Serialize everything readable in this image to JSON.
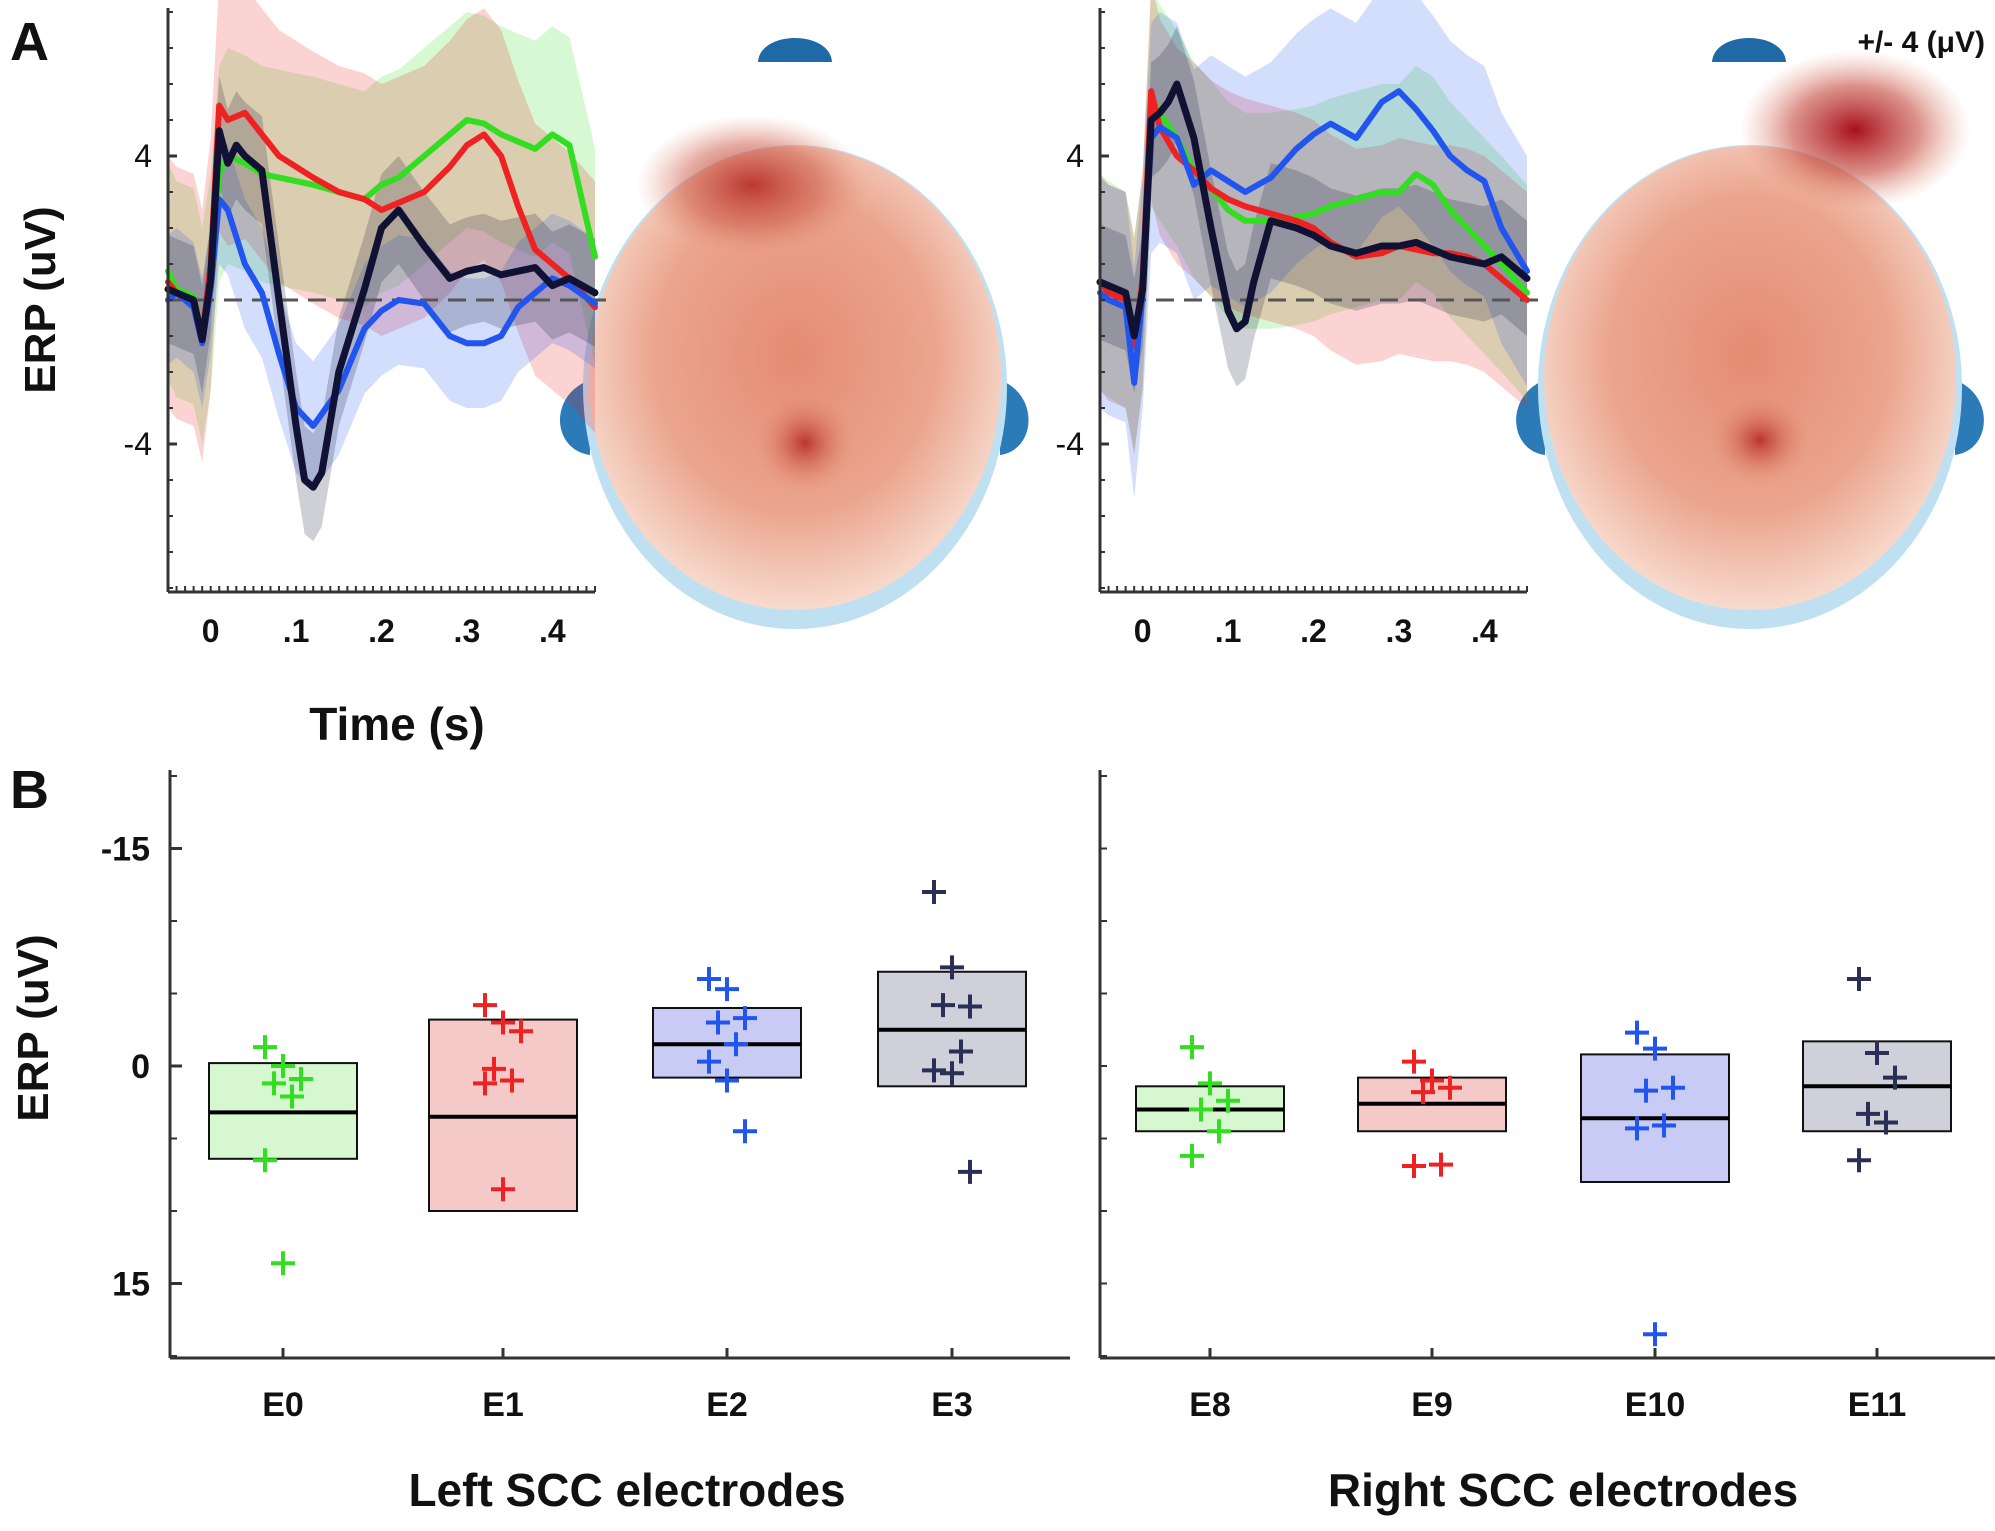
{
  "chart_data": [
    {
      "panel": "A",
      "type": "line",
      "title": "",
      "scale_label": "+/- 4 (μV)",
      "ylabel": "ERP (uV)",
      "xlabel": "Time (s)",
      "xlim": [
        -0.05,
        0.45
      ],
      "ylim": [
        -8,
        8
      ],
      "yticks": [
        4,
        -4
      ],
      "ytick_labels": [
        "4",
        "-4"
      ],
      "xticks": [
        0,
        0.1,
        0.2,
        0.3,
        0.4
      ],
      "xtick_labels": [
        "0",
        ".1",
        ".2",
        ".3",
        ".4"
      ],
      "colors": {
        "green": "#33dd22",
        "red": "#ee2222",
        "blue": "#2255ee",
        "black": "#111133"
      },
      "subplots": [
        {
          "name": "left",
          "series": [
            {
              "name": "green",
              "color": "#33dd22",
              "x": [
                -0.05,
                -0.04,
                -0.02,
                -0.01,
                0.0,
                0.01,
                0.02,
                0.04,
                0.06,
                0.08,
                0.1,
                0.12,
                0.15,
                0.18,
                0.2,
                0.22,
                0.25,
                0.28,
                0.3,
                0.32,
                0.34,
                0.36,
                0.38,
                0.4,
                0.42,
                0.45
              ],
              "y": [
                0.8,
                0.3,
                0.1,
                -1.0,
                0.5,
                3.5,
                4.0,
                3.8,
                3.5,
                3.4,
                3.3,
                3.2,
                3.0,
                2.8,
                3.2,
                3.4,
                4.0,
                4.6,
                5.0,
                4.9,
                4.6,
                4.4,
                4.2,
                4.6,
                4.3,
                1.2
              ],
              "band": 3.0
            },
            {
              "name": "red",
              "color": "#ee2222",
              "x": [
                -0.05,
                -0.04,
                -0.02,
                -0.01,
                0.0,
                0.01,
                0.02,
                0.04,
                0.06,
                0.08,
                0.1,
                0.12,
                0.15,
                0.18,
                0.2,
                0.22,
                0.25,
                0.28,
                0.3,
                0.32,
                0.34,
                0.36,
                0.38,
                0.4,
                0.42,
                0.45
              ],
              "y": [
                0.5,
                0.2,
                0.0,
                -1.0,
                1.0,
                5.4,
                5.0,
                5.2,
                4.6,
                4.0,
                3.7,
                3.4,
                3.0,
                2.8,
                2.5,
                2.7,
                3.0,
                3.7,
                4.3,
                4.6,
                4.0,
                2.6,
                1.4,
                1.0,
                0.6,
                -0.2
              ],
              "band": 3.5
            },
            {
              "name": "blue",
              "color": "#2255ee",
              "x": [
                -0.05,
                -0.04,
                -0.02,
                -0.01,
                0.0,
                0.01,
                0.02,
                0.04,
                0.06,
                0.08,
                0.1,
                0.12,
                0.15,
                0.18,
                0.2,
                0.22,
                0.25,
                0.28,
                0.3,
                0.32,
                0.34,
                0.36,
                0.38,
                0.4,
                0.42,
                0.45
              ],
              "y": [
                0.0,
                0.2,
                -0.2,
                -1.2,
                0.3,
                2.8,
                2.5,
                1.0,
                0.2,
                -1.5,
                -3.0,
                -3.5,
                -2.5,
                -0.8,
                -0.3,
                0.0,
                -0.1,
                -1.0,
                -1.2,
                -1.2,
                -1.0,
                -0.2,
                0.2,
                0.6,
                0.4,
                -0.1
              ],
              "band": 1.8
            },
            {
              "name": "black",
              "color": "#111133",
              "x": [
                -0.05,
                -0.04,
                -0.02,
                -0.01,
                0.0,
                0.01,
                0.02,
                0.03,
                0.04,
                0.06,
                0.08,
                0.1,
                0.11,
                0.12,
                0.13,
                0.15,
                0.18,
                0.2,
                0.22,
                0.25,
                0.28,
                0.3,
                0.32,
                0.34,
                0.36,
                0.38,
                0.4,
                0.42,
                0.45
              ],
              "y": [
                0.3,
                0.2,
                0.0,
                -1.1,
                0.6,
                4.7,
                3.8,
                4.3,
                4.0,
                3.6,
                0.0,
                -3.5,
                -5.0,
                -5.2,
                -4.8,
                -2.0,
                0.3,
                2.0,
                2.5,
                1.5,
                0.6,
                0.8,
                0.9,
                0.7,
                0.8,
                0.9,
                0.4,
                0.6,
                0.2
              ],
              "band": 1.5
            }
          ]
        },
        {
          "name": "right",
          "series": [
            {
              "name": "green",
              "color": "#33dd22",
              "x": [
                -0.05,
                -0.04,
                -0.02,
                -0.01,
                0.0,
                0.01,
                0.02,
                0.04,
                0.06,
                0.08,
                0.1,
                0.12,
                0.15,
                0.18,
                0.2,
                0.22,
                0.25,
                0.28,
                0.3,
                0.32,
                0.34,
                0.36,
                0.38,
                0.4,
                0.42,
                0.45
              ],
              "y": [
                0.5,
                0.3,
                0.0,
                -1.2,
                0.5,
                5.6,
                5.2,
                4.5,
                3.6,
                3.1,
                2.5,
                2.2,
                2.2,
                2.3,
                2.4,
                2.6,
                2.8,
                3.0,
                3.0,
                3.5,
                3.2,
                2.5,
                2.0,
                1.5,
                1.0,
                0.2
              ],
              "band": 3.0
            },
            {
              "name": "red",
              "color": "#ee2222",
              "x": [
                -0.05,
                -0.04,
                -0.02,
                -0.01,
                0.0,
                0.01,
                0.02,
                0.04,
                0.06,
                0.08,
                0.1,
                0.12,
                0.15,
                0.18,
                0.2,
                0.22,
                0.25,
                0.28,
                0.3,
                0.32,
                0.34,
                0.36,
                0.38,
                0.4,
                0.42,
                0.45
              ],
              "y": [
                0.5,
                0.2,
                0.0,
                -1.3,
                0.6,
                5.8,
                4.8,
                4.0,
                3.6,
                3.1,
                2.8,
                2.6,
                2.4,
                2.2,
                2.0,
                1.6,
                1.2,
                1.3,
                1.5,
                1.4,
                1.3,
                1.3,
                1.2,
                1.0,
                0.6,
                0.0
              ],
              "band": 3.0
            },
            {
              "name": "blue",
              "color": "#2255ee",
              "x": [
                -0.05,
                -0.04,
                -0.02,
                -0.01,
                0.0,
                0.01,
                0.02,
                0.04,
                0.06,
                0.08,
                0.1,
                0.12,
                0.15,
                0.18,
                0.2,
                0.22,
                0.25,
                0.28,
                0.3,
                0.32,
                0.34,
                0.36,
                0.38,
                0.4,
                0.42,
                0.45
              ],
              "y": [
                0.2,
                0.0,
                -0.2,
                -2.3,
                0.2,
                4.5,
                4.8,
                4.5,
                3.2,
                3.6,
                3.3,
                3.0,
                3.4,
                4.2,
                4.6,
                4.9,
                4.5,
                5.5,
                5.8,
                5.3,
                4.7,
                4.0,
                3.6,
                3.3,
                2.0,
                0.8
              ],
              "band": 3.2
            },
            {
              "name": "black",
              "color": "#111133",
              "x": [
                -0.05,
                -0.04,
                -0.02,
                -0.01,
                0.0,
                0.01,
                0.02,
                0.03,
                0.04,
                0.06,
                0.08,
                0.1,
                0.11,
                0.12,
                0.13,
                0.15,
                0.18,
                0.2,
                0.22,
                0.25,
                0.28,
                0.3,
                0.32,
                0.34,
                0.36,
                0.38,
                0.4,
                0.42,
                0.45
              ],
              "y": [
                0.5,
                0.4,
                0.2,
                -1.0,
                0.3,
                5.0,
                5.2,
                5.5,
                6.0,
                4.5,
                2.0,
                -0.3,
                -0.8,
                -0.6,
                0.5,
                2.2,
                2.0,
                1.8,
                1.5,
                1.3,
                1.5,
                1.5,
                1.6,
                1.4,
                1.2,
                1.1,
                1.0,
                1.2,
                0.6
              ],
              "band": 1.6
            }
          ]
        }
      ],
      "topomaps": [
        {
          "name": "left-topomap",
          "hotspots": [
            "frontal",
            "parietal"
          ]
        },
        {
          "name": "right-topomap",
          "hotspots": [
            "right-frontal",
            "parietal"
          ]
        }
      ]
    },
    {
      "panel": "B",
      "type": "box",
      "ylabel": "ERP (uV)",
      "ylim": [
        -20,
        20
      ],
      "y_inverted": true,
      "yticks": [
        -15,
        0,
        15
      ],
      "ytick_labels": [
        "-15",
        "0",
        "15"
      ],
      "groups": [
        {
          "name": "left",
          "xlabel": "Left SCC electrodes",
          "boxes": [
            {
              "category": "E0",
              "color": "#33dd22",
              "fill": "#d6f7cf",
              "q1": -0.2,
              "median": 3.2,
              "q3": 6.4,
              "points": [
                -1.3,
                0.0,
                0.9,
                1.2,
                2.1,
                6.5,
                13.6
              ]
            },
            {
              "category": "E1",
              "color": "#ee2222",
              "fill": "#f6c9c9",
              "q1": -3.2,
              "median": 3.5,
              "q3": 10.0,
              "points": [
                -4.2,
                -3.0,
                -2.4,
                0.2,
                1.0,
                1.2,
                8.5
              ]
            },
            {
              "category": "E2",
              "color": "#2255ee",
              "fill": "#c8ccf4",
              "q1": -4.0,
              "median": -1.5,
              "q3": 0.8,
              "points": [
                -6.0,
                -5.3,
                -3.3,
                -3.0,
                -1.5,
                -0.3,
                1.0,
                4.5
              ]
            },
            {
              "category": "E3",
              "color": "#2a2f55",
              "fill": "#cfd0da",
              "q1": -6.5,
              "median": -2.5,
              "q3": 1.4,
              "points": [
                -12.0,
                -6.8,
                -4.1,
                -4.2,
                -1.0,
                0.3,
                0.5,
                7.3
              ]
            }
          ]
        },
        {
          "name": "right",
          "xlabel": "Right SCC electrodes",
          "boxes": [
            {
              "category": "E8",
              "color": "#33dd22",
              "fill": "#d6f7cf",
              "q1": 1.4,
              "median": 3.0,
              "q3": 4.5,
              "points": [
                -1.3,
                1.2,
                2.4,
                3.0,
                4.5,
                6.2
              ]
            },
            {
              "category": "E9",
              "color": "#ee2222",
              "fill": "#f6c9c9",
              "q1": 0.8,
              "median": 2.6,
              "q3": 4.5,
              "points": [
                -0.3,
                1.0,
                1.5,
                1.8,
                6.8,
                6.9
              ]
            },
            {
              "category": "E10",
              "color": "#2255ee",
              "fill": "#c8ccf4",
              "q1": -0.8,
              "median": 3.6,
              "q3": 8.0,
              "points": [
                -2.3,
                -1.2,
                1.5,
                1.7,
                4.1,
                4.3,
                18.5
              ]
            },
            {
              "category": "E11",
              "color": "#2a2f55",
              "fill": "#cfd0da",
              "q1": -1.7,
              "median": 1.4,
              "q3": 4.5,
              "points": [
                -6.0,
                -0.9,
                0.8,
                3.3,
                3.9,
                6.5
              ]
            }
          ]
        }
      ]
    }
  ],
  "labels": {
    "panel_a": "A",
    "panel_b": "B",
    "scale": "+/- 4 (μV)",
    "ylabel_a": "ERP (uV)",
    "ylabel_b": "ERP (uV)",
    "xlabel_a": "Time (s)",
    "xlabel_b_left": "Left SCC electrodes",
    "xlabel_b_right": "Right SCC electrodes"
  }
}
